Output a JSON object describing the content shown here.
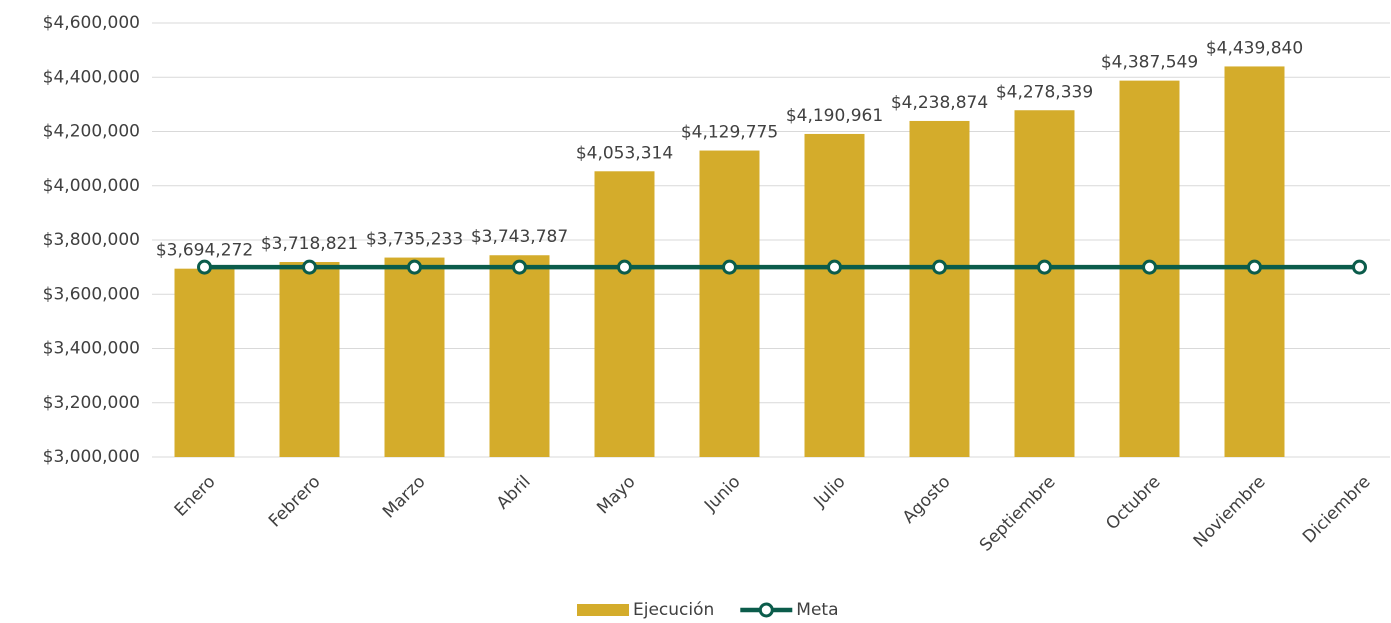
{
  "chart_data": {
    "type": "combo",
    "categories": [
      "Enero",
      "Febrero",
      "Marzo",
      "Abril",
      "Mayo",
      "Junio",
      "Julio",
      "Agosto",
      "Septiembre",
      "Octubre",
      "Noviembre",
      "Diciembre"
    ],
    "series": [
      {
        "name": "Ejecución",
        "type": "bar",
        "color": "#d4ac2b",
        "values": [
          3694272,
          3718821,
          3735233,
          3743787,
          4053314,
          4129775,
          4190961,
          4238874,
          4278339,
          4387549,
          4439840,
          null
        ],
        "value_labels": [
          "$3,694,272",
          "$3,718,821",
          "$3,735,233",
          "$3,743,787",
          "$4,053,314",
          "$4,129,775",
          "$4,190,961",
          "$4,238,874",
          "$4,278,339",
          "$4,387,549",
          "$4,439,840",
          null
        ]
      },
      {
        "name": "Meta",
        "type": "line",
        "color": "#0b5c4b",
        "values": [
          3700000,
          3700000,
          3700000,
          3700000,
          3700000,
          3700000,
          3700000,
          3700000,
          3700000,
          3700000,
          3700000,
          3700000
        ]
      }
    ],
    "ylim": [
      3000000,
      4600000
    ],
    "yticks": [
      {
        "value": 3000000,
        "label": "$3,000,000"
      },
      {
        "value": 3200000,
        "label": "$3,200,000"
      },
      {
        "value": 3400000,
        "label": "$3,400,000"
      },
      {
        "value": 3600000,
        "label": "$3,600,000"
      },
      {
        "value": 3800000,
        "label": "$3,800,000"
      },
      {
        "value": 4000000,
        "label": "$4,000,000"
      },
      {
        "value": 4200000,
        "label": "$4,200,000"
      },
      {
        "value": 4400000,
        "label": "$4,400,000"
      },
      {
        "value": 4600000,
        "label": "$4,600,000"
      }
    ],
    "grid": true,
    "legend": "bottom"
  }
}
